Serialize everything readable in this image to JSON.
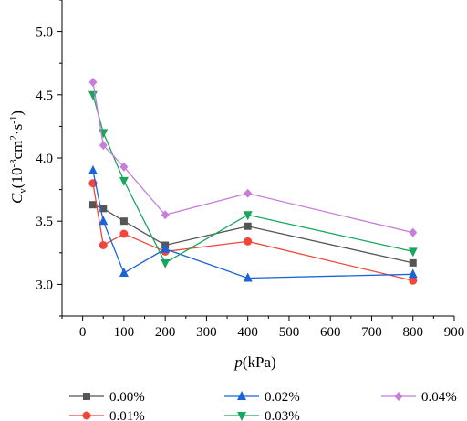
{
  "chart_data": {
    "type": "line",
    "x": [
      25,
      50,
      100,
      200,
      400,
      800
    ],
    "xlim": [
      -50,
      900
    ],
    "ylim": [
      2.75,
      5.25
    ],
    "xticks": [
      0,
      100,
      200,
      300,
      400,
      500,
      600,
      700,
      800,
      900
    ],
    "yticks": [
      3.0,
      3.5,
      4.0,
      4.5,
      5.0
    ],
    "xtick_labels": [
      "0",
      "100",
      "200",
      "300",
      "400",
      "500",
      "600",
      "700",
      "800",
      "900"
    ],
    "ytick_labels": [
      "3.0",
      "3.5",
      "4.0",
      "4.5",
      "5.0"
    ],
    "xlabel": {
      "italic": "p",
      "rest": "(kPa)"
    },
    "ylabel": {
      "italic": "C",
      "sub": "v",
      "base": "(10",
      "sup1": "-3",
      "mid": "cm",
      "sup2": "2",
      "dot": "·s",
      "sup3": "-1",
      "end": ")"
    },
    "grid": false,
    "legend_position": "bottom",
    "series": [
      {
        "name": "0.00%",
        "color": "#555555",
        "marker": "square",
        "values": [
          3.63,
          3.6,
          3.5,
          3.31,
          3.46,
          3.17
        ]
      },
      {
        "name": "0.01%",
        "color": "#f0463c",
        "marker": "circle",
        "values": [
          3.8,
          3.31,
          3.4,
          3.26,
          3.34,
          3.03
        ]
      },
      {
        "name": "0.02%",
        "color": "#1b63d6",
        "marker": "triangle-up",
        "values": [
          3.9,
          3.5,
          3.09,
          3.28,
          3.05,
          3.08
        ]
      },
      {
        "name": "0.03%",
        "color": "#17a65b",
        "marker": "triangle-down",
        "values": [
          4.5,
          4.2,
          3.82,
          3.17,
          3.55,
          3.26
        ]
      },
      {
        "name": "0.04%",
        "color": "#c77ddb",
        "marker": "diamond",
        "values": [
          4.6,
          4.1,
          3.93,
          3.55,
          3.72,
          3.41
        ]
      }
    ]
  }
}
